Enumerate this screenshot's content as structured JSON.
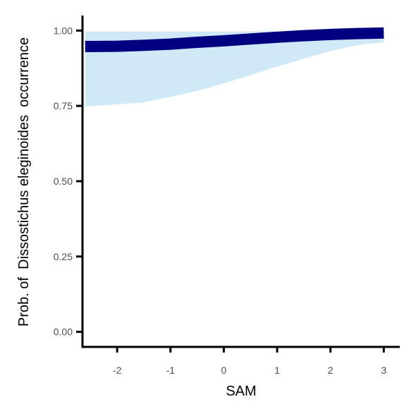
{
  "chart_data": {
    "type": "line",
    "xlabel": "SAM",
    "ylabel": "Prob. of  Dissostichus eleginoides  occurrence",
    "xlim": [
      -2.65,
      3.3
    ],
    "ylim": [
      -0.05,
      1.05
    ],
    "x_ticks": [
      -2,
      -1,
      0,
      1,
      2,
      3
    ],
    "y_ticks": [
      0.0,
      0.25,
      0.5,
      0.75,
      1.0
    ],
    "x_tick_labels": [
      "-2",
      "-1",
      "0",
      "1",
      "2",
      "3"
    ],
    "y_tick_labels": [
      "0.00",
      "0.25",
      "0.50",
      "0.75",
      "1.00"
    ],
    "grid": false,
    "legend": "none",
    "series": [
      {
        "x": [
          -2.6,
          -2.0,
          -1.5,
          -1.0,
          -0.5,
          0.0,
          0.5,
          1.0,
          1.5,
          2.0,
          2.5,
          3.0
        ],
        "y": [
          0.947,
          0.948,
          0.951,
          0.955,
          0.961,
          0.966,
          0.972,
          0.978,
          0.983,
          0.987,
          0.99,
          0.992
        ],
        "lower": [
          0.748,
          0.755,
          0.762,
          0.78,
          0.8,
          0.825,
          0.852,
          0.88,
          0.907,
          0.932,
          0.952,
          0.962
        ],
        "upper": [
          0.997,
          0.997,
          0.997,
          0.997,
          0.997,
          0.997,
          0.997,
          0.998,
          0.998,
          0.998,
          0.998,
          0.998
        ],
        "color": "#000080",
        "band_color": "#cfe9f7"
      }
    ]
  }
}
